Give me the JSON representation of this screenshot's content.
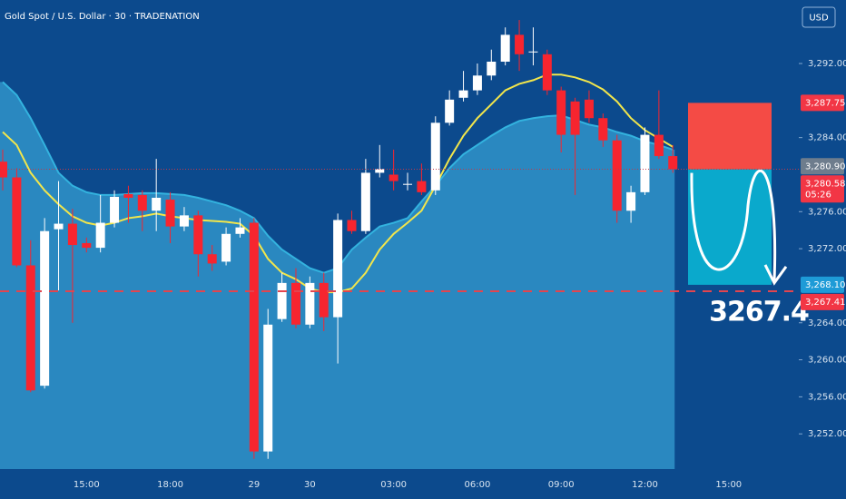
{
  "chart_data": {
    "type": "candlestick",
    "title": "Gold Spot / U.S. Dollar · 30 · TRADENATION",
    "currency": "USD",
    "categories": [
      null,
      null,
      null,
      null,
      null,
      null,
      "15:00",
      null,
      null,
      null,
      null,
      null,
      "18:00",
      null,
      null,
      null,
      null,
      null,
      "29",
      null,
      null,
      null,
      "30",
      null,
      null,
      null,
      null,
      null,
      "03:00",
      null,
      null,
      null,
      null,
      null,
      "06:00",
      null,
      null,
      null,
      null,
      null,
      "09:00",
      null,
      null,
      null,
      null,
      null,
      "12:00",
      null,
      null,
      null,
      null,
      null,
      "15:00"
    ],
    "open": [
      3281.4,
      3279.7,
      3270.2,
      3257.2,
      3274.1,
      3274.7,
      3272.6,
      3272.1,
      3274.8,
      3277.9,
      3277.8,
      3276.1,
      3277.3,
      3274.4,
      3275.6,
      3271.4,
      3270.6,
      3273.6,
      3274.8,
      3250.1,
      3264.4,
      3268.3,
      3263.8,
      3268.3,
      3264.6,
      3275.1,
      3273.9,
      3280.2,
      3280.0,
      3278.9,
      3279.3,
      3278.3,
      3285.6,
      3288.3,
      3289.1,
      3290.7,
      3292.2,
      3295.1,
      3293.2,
      3293.0,
      3289.1,
      3287.9,
      3288.1,
      3286.1,
      3283.7,
      3276.1,
      3278.1,
      3284.3,
      3282.0,
      null,
      null,
      null,
      null
    ],
    "high": [
      3282.7,
      3280.7,
      3272.9,
      3275.3,
      3279.3,
      3276.3,
      3273.2,
      3277.8,
      3278.3,
      3278.8,
      3278.3,
      3281.7,
      3278.1,
      3276.5,
      3276.1,
      3272.4,
      3274.3,
      3275.3,
      3275.3,
      3265.5,
      3269.4,
      3269.9,
      3269.0,
      3269.4,
      3275.8,
      3276.1,
      3281.7,
      3283.2,
      3282.7,
      3280.2,
      3281.2,
      3286.3,
      3289.1,
      3291.2,
      3292.0,
      3293.5,
      3295.9,
      3296.7,
      3295.9,
      3293.5,
      3289.5,
      3288.3,
      3289.1,
      3286.6,
      3284.3,
      3278.8,
      3285.1,
      3289.1,
      3283.2,
      null,
      null,
      null,
      null
    ],
    "low": [
      3278.3,
      3270.0,
      3256.5,
      3256.9,
      3267.5,
      3264.0,
      3271.6,
      3271.6,
      3274.3,
      3274.8,
      3273.9,
      3273.9,
      3272.6,
      3273.9,
      3269.0,
      3269.6,
      3270.2,
      3273.2,
      3249.3,
      3249.3,
      3264.1,
      3263.4,
      3263.4,
      3263.1,
      3259.6,
      3273.6,
      3273.6,
      3279.7,
      3278.3,
      3278.3,
      3277.8,
      3277.8,
      3285.3,
      3287.9,
      3288.6,
      3290.2,
      3291.8,
      3291.2,
      3291.8,
      3288.6,
      3282.4,
      3277.8,
      3285.6,
      3283.0,
      3274.8,
      3274.8,
      3277.8,
      3281.7,
      3280.2,
      null,
      null,
      null,
      null
    ],
    "close": [
      3279.7,
      3270.2,
      3256.7,
      3273.9,
      3274.7,
      3272.4,
      3272.1,
      3274.8,
      3277.6,
      3277.5,
      3276.1,
      3277.5,
      3274.4,
      3275.6,
      3271.4,
      3270.4,
      3273.6,
      3274.3,
      3250.1,
      3263.8,
      3268.3,
      3263.8,
      3268.3,
      3264.6,
      3275.1,
      3273.9,
      3280.2,
      3280.6,
      3279.3,
      3279.0,
      3278.1,
      3285.6,
      3288.1,
      3289.1,
      3290.7,
      3292.2,
      3295.1,
      3293.0,
      3293.3,
      3289.1,
      3284.3,
      3284.3,
      3286.1,
      3283.7,
      3276.1,
      3278.1,
      3284.3,
      3282.0,
      3280.58,
      null,
      null,
      null,
      null
    ],
    "ema": [
      3284.6,
      3283.2,
      3280.2,
      3278.3,
      3276.8,
      3275.5,
      3274.8,
      3274.5,
      3274.8,
      3275.3,
      3275.5,
      3275.8,
      3275.5,
      3275.3,
      3275.1,
      3275.0,
      3274.9,
      3274.7,
      3273.4,
      3270.9,
      3269.4,
      3268.7,
      3267.7,
      3267.3,
      3267.3,
      3267.7,
      3269.4,
      3271.9,
      3273.6,
      3274.8,
      3276.1,
      3278.8,
      3281.7,
      3284.2,
      3286.1,
      3287.6,
      3289.1,
      3289.8,
      3290.2,
      3290.8,
      3290.8,
      3290.5,
      3290.0,
      3289.2,
      3287.9,
      3286.1,
      3284.8,
      3283.9,
      3283.0,
      null,
      null,
      null,
      null
    ],
    "band": [
      3290.0,
      3288.6,
      3286.1,
      3283.2,
      3280.2,
      3278.8,
      3278.1,
      3277.8,
      3277.8,
      3277.9,
      3278.0,
      3278.0,
      3277.9,
      3277.8,
      3277.5,
      3277.1,
      3276.7,
      3276.1,
      3275.3,
      3273.4,
      3271.9,
      3270.9,
      3269.9,
      3269.4,
      3269.9,
      3271.9,
      3273.2,
      3274.4,
      3274.8,
      3275.3,
      3277.1,
      3278.8,
      3280.7,
      3282.2,
      3283.2,
      3284.2,
      3285.1,
      3285.8,
      3286.1,
      3286.3,
      3286.4,
      3285.9,
      3285.4,
      3285.1,
      3284.6,
      3284.2,
      3283.6,
      3283.2,
      3282.7,
      null,
      null,
      null,
      null
    ],
    "up_color": "#ffffff",
    "down_color": "#f7252f",
    "ema_color": "#f2e64b",
    "band_color": "#33b3df",
    "ylim": [
      3248.2,
      3298.86
    ],
    "yticks": [
      {
        "value": 3252,
        "label": "3,252.00"
      },
      {
        "value": 3256,
        "label": "3,256.00"
      },
      {
        "value": 3260,
        "label": "3,260.00"
      },
      {
        "value": 3264,
        "label": "3,264.00"
      },
      {
        "value": 3272,
        "label": "3,272.00"
      },
      {
        "value": 3276,
        "label": "3,276.00"
      },
      {
        "value": 3284,
        "label": "3,284.00"
      },
      {
        "value": 3292,
        "label": "3,292.00"
      }
    ],
    "price_labels": [
      {
        "value": 3287.75,
        "label": "3,287.75",
        "color": "#f23645"
      },
      {
        "value": 3280.9,
        "label": "3,280.90",
        "color": "#6e7d8d"
      },
      {
        "value": 3280.58,
        "label": "3,280.58",
        "color": "#f23645",
        "countdown": "05:26"
      },
      {
        "value": 3268.1,
        "label": "3,268.10",
        "color": "#1e9bd7"
      },
      {
        "value": 3267.41,
        "label": "3,267.41",
        "color": "#f23645"
      }
    ],
    "target_text": "3267.4"
  }
}
